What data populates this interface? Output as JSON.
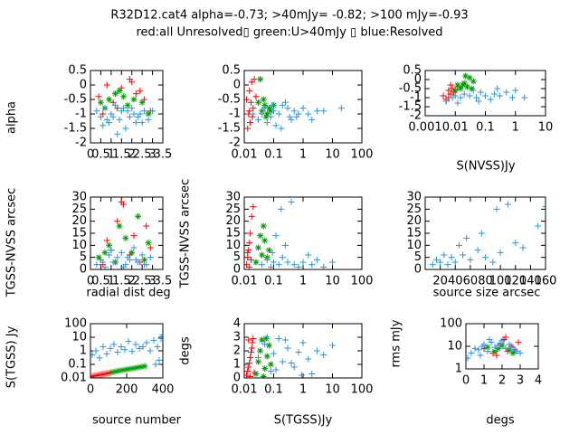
{
  "title": "R32D12.cat4 alpha=-0.73; >40mJy= -0.82; >100 mJy=-0.93",
  "subtitle": "red:all Unresolved▯ green:U>40mJy ▯ blue:Resolved",
  "chart_data": [
    {
      "type": "scatter",
      "ylabel": "alpha",
      "xlim": [
        0,
        3.5
      ],
      "ylim": [
        -2,
        0.5
      ],
      "xticks": [
        0,
        0.5,
        1,
        1.5,
        2,
        2.5,
        3,
        3.5
      ],
      "yticks": [
        -2,
        -1.5,
        -1,
        -0.5,
        0,
        0.5
      ],
      "xlog": false,
      "ylog": false,
      "series": [
        {
          "color": "#ff0000",
          "marker": "+",
          "x": [
            0.4,
            0.8,
            1.1,
            1.5,
            1.9,
            2.2,
            2.6,
            2.9,
            1.3,
            2.0,
            0.6,
            2.4
          ],
          "y": [
            -0.4,
            0,
            -0.6,
            -0.1,
            0.2,
            -0.3,
            -0.5,
            -0.9,
            -0.8,
            0.1,
            -1.0,
            -0.2
          ]
        },
        {
          "color": "#00a000",
          "marker": "*",
          "x": [
            0.5,
            0.9,
            1.2,
            1.6,
            1.8,
            2.1,
            2.5,
            2.8,
            1.4,
            0.7
          ],
          "y": [
            -0.6,
            -0.5,
            -0.3,
            -0.4,
            -0.7,
            -0.5,
            -0.6,
            -1.0,
            -0.2,
            -0.8
          ]
        },
        {
          "color": "#2b95e0",
          "marker": "+",
          "x": [
            0.3,
            0.5,
            0.7,
            0.9,
            1.0,
            1.2,
            1.4,
            1.5,
            1.7,
            1.9,
            2.0,
            2.2,
            2.4,
            2.6,
            2.8,
            3.0,
            0.6,
            1.1,
            1.6,
            2.1,
            2.5,
            1.3,
            1.8,
            2.3,
            0.8
          ],
          "y": [
            -0.9,
            -1.1,
            -0.8,
            -1.3,
            -1.0,
            -0.7,
            -1.2,
            -0.9,
            -1.5,
            -1.1,
            -0.8,
            -1.3,
            -1.0,
            -0.9,
            -1.2,
            -0.9,
            -1.4,
            -1.1,
            -0.8,
            -1.0,
            -1.3,
            -1.7,
            -0.9,
            -1.1,
            -1.2
          ]
        }
      ]
    },
    {
      "type": "scatter",
      "xlim": [
        0.01,
        100
      ],
      "ylim": [
        -2,
        0.5
      ],
      "xticks": [
        0.01,
        0.1,
        1,
        10,
        100
      ],
      "yticks": [
        -2,
        -1.5,
        -1,
        -0.5,
        0,
        0.5
      ],
      "xlog": true,
      "ylog": false,
      "series": [
        {
          "color": "#ff0000",
          "marker": "+",
          "x": [
            0.012,
            0.014,
            0.015,
            0.016,
            0.018,
            0.02,
            0.013,
            0.017,
            0.019,
            0.022,
            0.015,
            0.025
          ],
          "y": [
            -0.5,
            -1.0,
            -0.2,
            -1.3,
            0.1,
            -0.8,
            -1.5,
            -0.6,
            -1.1,
            0.2,
            -0.9,
            -0.4
          ]
        },
        {
          "color": "#00a000",
          "marker": "*",
          "x": [
            0.03,
            0.035,
            0.04,
            0.05,
            0.06,
            0.045,
            0.07,
            0.08,
            0.055,
            0.1
          ],
          "y": [
            -0.6,
            0.2,
            -0.9,
            -0.7,
            -1.0,
            -0.5,
            -0.8,
            -0.9,
            -1.1,
            -0.7
          ]
        },
        {
          "color": "#2b95e0",
          "marker": "+",
          "x": [
            0.02,
            0.03,
            0.05,
            0.08,
            0.1,
            0.15,
            0.2,
            0.3,
            0.4,
            0.5,
            0.7,
            1,
            1.5,
            2,
            3,
            5,
            20,
            0.06,
            0.12,
            0.25,
            0.6,
            0.04,
            0.09,
            0.18,
            0.35
          ],
          "y": [
            -1.0,
            -1.2,
            -0.8,
            -1.1,
            -0.9,
            -1.0,
            -0.7,
            -0.8,
            -1.2,
            -0.9,
            -1.0,
            -0.8,
            -1.0,
            -1.2,
            -0.9,
            -0.9,
            -0.8,
            -1.3,
            -1.4,
            -0.6,
            -1.1,
            -1.0,
            -0.7,
            -1.5,
            -1.1
          ]
        }
      ]
    },
    {
      "type": "scatter",
      "xlabel": "S(NVSS)Jy",
      "xlim": [
        0.001,
        10
      ],
      "ylim": [
        -2,
        0.5
      ],
      "xticks": [
        0.001,
        0.01,
        0.1,
        1,
        10
      ],
      "yticks": [
        -2,
        -1.5,
        -1,
        -0.5,
        0,
        0.5
      ],
      "xlog": true,
      "ylog": false,
      "series": [
        {
          "color": "#ff0000",
          "marker": "+",
          "x": [
            0.004,
            0.005,
            0.006,
            0.007,
            0.008,
            0.005,
            0.009,
            0.006,
            0.012,
            0.007
          ],
          "y": [
            -0.9,
            -1.1,
            -0.6,
            -0.8,
            -0.5,
            -1.2,
            -0.7,
            -1.0,
            -0.4,
            -0.3
          ]
        },
        {
          "color": "#00a000",
          "marker": "*",
          "x": [
            0.01,
            0.012,
            0.015,
            0.02,
            0.025,
            0.03,
            0.018,
            0.04,
            0.022,
            0.035
          ],
          "y": [
            -0.6,
            -0.3,
            -0.5,
            -0.2,
            -0.4,
            0.1,
            -0.3,
            -0.1,
            0.2,
            -0.5
          ]
        },
        {
          "color": "#2b95e0",
          "marker": "+",
          "x": [
            0.005,
            0.008,
            0.01,
            0.015,
            0.02,
            0.03,
            0.05,
            0.07,
            0.1,
            0.15,
            0.2,
            0.3,
            0.5,
            0.8,
            1,
            2,
            0.012,
            0.04,
            0.06,
            0.25
          ],
          "y": [
            -1.2,
            -1.0,
            -0.9,
            -1.0,
            -0.8,
            -0.9,
            -1.0,
            -0.7,
            -0.9,
            -1.1,
            -0.8,
            -0.9,
            -0.7,
            -1.0,
            -0.6,
            -1.0,
            -1.3,
            -0.6,
            -1.2,
            -0.5
          ]
        }
      ]
    },
    {
      "type": "scatter",
      "xlabel": "radial dist deg",
      "ylabel": "TGSS-NVSS arcsec",
      "xlim": [
        0,
        3.5
      ],
      "ylim": [
        0,
        30
      ],
      "xticks": [
        0,
        0.5,
        1,
        1.5,
        2,
        2.5,
        3,
        3.5
      ],
      "yticks": [
        0,
        5,
        10,
        15,
        20,
        25,
        30
      ],
      "xlog": false,
      "ylog": false,
      "series": [
        {
          "color": "#ff0000",
          "marker": "+",
          "x": [
            0.5,
            0.8,
            1.0,
            1.3,
            1.6,
            1.9,
            2.1,
            2.4,
            2.7,
            2.9,
            1.5,
            0.6
          ],
          "y": [
            4,
            12,
            8,
            20,
            27,
            6,
            14,
            3,
            18,
            9,
            28,
            2
          ]
        },
        {
          "color": "#00a000",
          "marker": "*",
          "x": [
            0.4,
            0.9,
            1.2,
            1.7,
            2.0,
            2.3,
            2.6,
            2.8,
            1.4,
            0.7
          ],
          "y": [
            5,
            10,
            3,
            13,
            7,
            22,
            4,
            11,
            18,
            7
          ]
        },
        {
          "color": "#2b95e0",
          "marker": "+",
          "x": [
            0.3,
            0.5,
            0.7,
            0.9,
            1.1,
            1.3,
            1.5,
            1.7,
            1.9,
            2.1,
            2.3,
            2.5,
            2.7,
            2.9,
            1.0,
            1.6,
            2.2,
            0.6,
            1.8,
            2.6
          ],
          "y": [
            2,
            4,
            1,
            6,
            3,
            5,
            7,
            2,
            4,
            9,
            3,
            6,
            2,
            5,
            8,
            1,
            4,
            3,
            5,
            2
          ]
        }
      ]
    },
    {
      "type": "scatter",
      "ylabel": "TGSS-NVSS arcsec",
      "xlim": [
        0.01,
        100
      ],
      "ylim": [
        0,
        30
      ],
      "xticks": [
        0.01,
        0.1,
        1,
        10,
        100
      ],
      "yticks": [
        0,
        5,
        10,
        15,
        20,
        25,
        30
      ],
      "xlog": true,
      "ylog": false,
      "series": [
        {
          "color": "#ff0000",
          "marker": "+",
          "x": [
            0.012,
            0.013,
            0.014,
            0.015,
            0.016,
            0.018,
            0.02,
            0.017,
            0.015,
            0.013
          ],
          "y": [
            2,
            5,
            8,
            11,
            15,
            22,
            26,
            4,
            1,
            7
          ]
        },
        {
          "color": "#00a000",
          "marker": "*",
          "x": [
            0.025,
            0.03,
            0.035,
            0.04,
            0.05,
            0.06,
            0.045,
            0.07
          ],
          "y": [
            3,
            9,
            14,
            6,
            12,
            5,
            18,
            8
          ]
        },
        {
          "color": "#2b95e0",
          "marker": "+",
          "x": [
            0.04,
            0.06,
            0.08,
            0.1,
            0.15,
            0.2,
            0.3,
            0.5,
            0.7,
            1,
            2,
            3,
            5,
            10,
            0.12,
            0.25,
            0.4,
            1.5,
            0.09,
            0.18
          ],
          "y": [
            2,
            4,
            1,
            3,
            2,
            5,
            3,
            2,
            1,
            3,
            2,
            4,
            1,
            3,
            14,
            10,
            28,
            6,
            7,
            25
          ]
        }
      ]
    },
    {
      "type": "scatter",
      "xlabel": "source size arcsec",
      "xlim": [
        0,
        160
      ],
      "ylim": [
        0,
        30
      ],
      "xticks": [
        20,
        40,
        60,
        80,
        100,
        120,
        140,
        160
      ],
      "yticks": [
        0,
        5,
        10,
        15,
        20,
        25,
        30
      ],
      "xlog": false,
      "ylog": false,
      "series": [
        {
          "color": "#2b95e0",
          "marker": "+",
          "x": [
            10,
            15,
            20,
            25,
            30,
            35,
            40,
            50,
            60,
            70,
            80,
            90,
            100,
            110,
            120,
            130,
            150,
            160,
            45,
            55,
            75,
            95
          ],
          "y": [
            2,
            4,
            3,
            6,
            2,
            5,
            3,
            6,
            4,
            8,
            5,
            3,
            7,
            27,
            11,
            9,
            18,
            26,
            10,
            13,
            15,
            25
          ]
        }
      ]
    },
    {
      "type": "scatter",
      "xlabel": "source number",
      "ylabel": "S(TGSS) Jy",
      "xlim": [
        0,
        400
      ],
      "ylim": [
        0.01,
        100
      ],
      "xticks": [
        0,
        200,
        400
      ],
      "yticks": [
        0.01,
        0.1,
        1,
        10,
        100
      ],
      "xlog": false,
      "ylog": true,
      "series": [
        {
          "color": "#ff0000",
          "marker": "+",
          "x": [
            0,
            10,
            20,
            30,
            40,
            50,
            60,
            70,
            80,
            90,
            100,
            110
          ],
          "y": [
            0.012,
            0.013,
            0.014,
            0.015,
            0.016,
            0.017,
            0.018,
            0.019,
            0.02,
            0.021,
            0.022,
            0.024
          ]
        },
        {
          "color": "#00a000",
          "marker": "*",
          "x": [
            120,
            140,
            160,
            180,
            200,
            220,
            240,
            260,
            280,
            300
          ],
          "y": [
            0.026,
            0.03,
            0.034,
            0.038,
            0.042,
            0.047,
            0.052,
            0.058,
            0.065,
            0.073
          ]
        },
        {
          "color": "#2b95e0",
          "marker": "+",
          "x": [
            10,
            30,
            50,
            70,
            90,
            110,
            130,
            150,
            170,
            190,
            210,
            230,
            250,
            270,
            290,
            310,
            330,
            350,
            370,
            390,
            400,
            380,
            360
          ],
          "y": [
            0.5,
            1,
            0.3,
            2,
            0.6,
            1.5,
            3,
            0.8,
            2,
            1.2,
            5,
            0.9,
            3,
            1.5,
            2,
            4,
            1,
            6,
            2,
            8,
            15,
            0.2,
            0.1
          ]
        }
      ]
    },
    {
      "type": "scatter",
      "xlabel": "S(TGSS)Jy",
      "ylabel": "degs",
      "xlim": [
        0.01,
        100
      ],
      "ylim": [
        0,
        4
      ],
      "xticks": [
        0.01,
        0.1,
        1,
        10,
        100
      ],
      "yticks": [
        0,
        1,
        2,
        3,
        4
      ],
      "xlog": true,
      "ylog": false,
      "series": [
        {
          "color": "#ff0000",
          "marker": "+",
          "x": [
            0.012,
            0.014,
            0.016,
            0.018,
            0.02,
            0.013,
            0.015,
            0.017,
            0.019,
            0.022,
            0.014,
            0.016
          ],
          "y": [
            0.2,
            0.8,
            1.5,
            2.2,
            2.9,
            0.5,
            1.1,
            1.9,
            2.6,
            0.4,
            2.8,
            0.1
          ]
        },
        {
          "color": "#00a000",
          "marker": "*",
          "x": [
            0.025,
            0.03,
            0.035,
            0.04,
            0.05,
            0.06,
            0.07,
            0.08,
            0.045,
            0.055
          ],
          "y": [
            0.3,
            1.2,
            2.0,
            2.8,
            0.7,
            1.6,
            2.4,
            1.0,
            0.1,
            2.9
          ]
        },
        {
          "color": "#2b95e0",
          "marker": "+",
          "x": [
            0.03,
            0.05,
            0.08,
            0.1,
            0.15,
            0.2,
            0.3,
            0.5,
            0.7,
            1,
            1.5,
            2,
            3,
            5,
            10,
            0.12,
            0.25,
            0.4,
            0.06,
            0.9
          ],
          "y": [
            1.5,
            2.5,
            0.5,
            1.8,
            2.9,
            1.2,
            2.2,
            0.8,
            1.9,
            2.6,
            1.4,
            0.3,
            2.0,
            1.7,
            2.4,
            0.6,
            2.8,
            1.1,
            3.0,
            0.2
          ]
        }
      ]
    },
    {
      "type": "scatter",
      "xlabel": "degs",
      "ylabel": "rms mJy",
      "xlim": [
        0,
        4
      ],
      "ylim": [
        1,
        100
      ],
      "xticks": [
        0,
        1,
        2,
        3,
        4
      ],
      "yticks": [
        1,
        10,
        100
      ],
      "xlog": false,
      "ylog": true,
      "series": [
        {
          "color": "#ff0000",
          "marker": "+",
          "x": [
            1.0,
            1.5,
            1.9,
            2.1,
            2.3,
            2.5,
            2.7,
            2.9,
            1.7,
            2.2
          ],
          "y": [
            8,
            5,
            12,
            20,
            6,
            10,
            7,
            15,
            4,
            25
          ]
        },
        {
          "color": "#00a000",
          "marker": "*",
          "x": [
            1.2,
            1.6,
            2.0,
            2.4,
            1.8,
            2.6
          ],
          "y": [
            9,
            6,
            11,
            7,
            8,
            5
          ]
        },
        {
          "color": "#2b95e0",
          "marker": "+",
          "x": [
            0.1,
            0.3,
            0.5,
            0.7,
            0.9,
            1.0,
            1.2,
            1.4,
            1.6,
            1.8,
            2.0,
            2.2,
            2.4,
            2.6,
            2.8,
            0.8,
            1.3,
            1.9,
            2.5,
            3.0
          ],
          "y": [
            3,
            5,
            8,
            7,
            10,
            12,
            6,
            15,
            9,
            11,
            18,
            8,
            12,
            9,
            6,
            4,
            20,
            14,
            7,
            5
          ]
        }
      ]
    }
  ]
}
